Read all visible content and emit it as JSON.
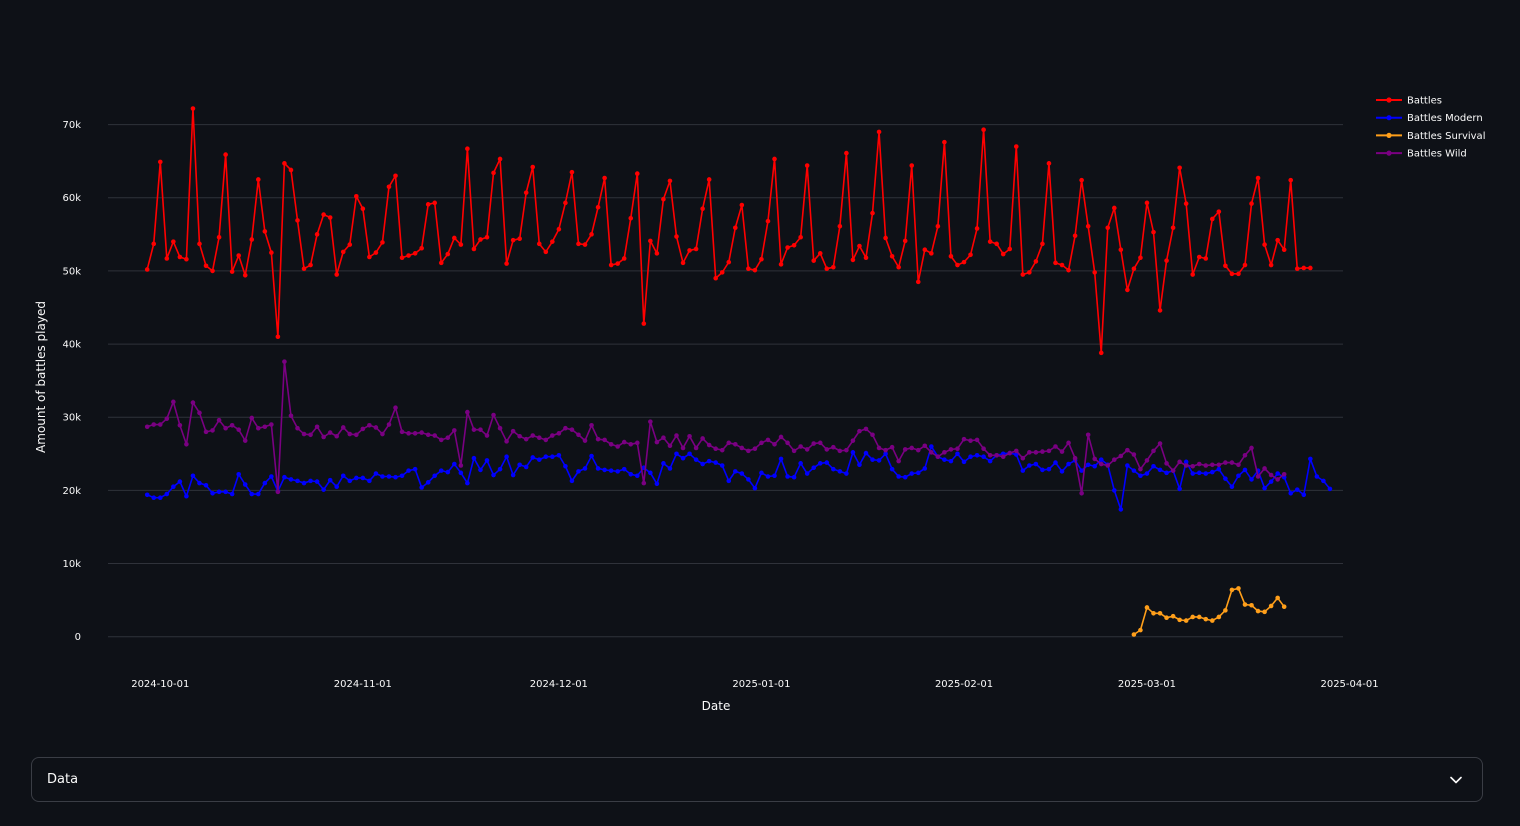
{
  "chart_data": {
    "type": "line",
    "xlabel": "Date",
    "ylabel": "Amount of battles played",
    "x_ticks": [
      "2024-10-01",
      "2024-11-01",
      "2024-12-01",
      "2025-01-01",
      "2025-02-01",
      "2025-03-01",
      "2025-04-01"
    ],
    "y_ticks": [
      {
        "value": 0,
        "label": "0"
      },
      {
        "value": 10000,
        "label": "10k"
      },
      {
        "value": 20000,
        "label": "20k"
      },
      {
        "value": 30000,
        "label": "30k"
      },
      {
        "value": 40000,
        "label": "40k"
      },
      {
        "value": 50000,
        "label": "50k"
      },
      {
        "value": 60000,
        "label": "60k"
      },
      {
        "value": 70000,
        "label": "70k"
      }
    ],
    "xlim": [
      "2024-09-23",
      "2025-03-31"
    ],
    "ylim": [
      -2500,
      75000
    ],
    "grid": true,
    "legend_position": "top-right",
    "series": [
      {
        "name": "Battles",
        "color": "#ff0000",
        "start": "2024-09-29",
        "values": [
          50200,
          53700,
          64900,
          51700,
          54000,
          51900,
          51600,
          72200,
          53700,
          50700,
          50000,
          54600,
          65900,
          49900,
          52100,
          49400,
          54300,
          62500,
          55400,
          52500,
          41000,
          64700,
          63800,
          56900,
          50300,
          50800,
          55000,
          57700,
          57300,
          49500,
          52600,
          53600,
          60200,
          58500,
          51900,
          52500,
          53900,
          61500,
          63000,
          51800,
          52100,
          52400,
          53100,
          59100,
          59300,
          51100,
          52300,
          54500,
          53600,
          66700,
          53000,
          54300,
          54600,
          63400,
          65300,
          51000,
          54200,
          54400,
          60700,
          64200,
          53700,
          52600,
          54000,
          55700,
          59300,
          63500,
          53700,
          53600,
          55000,
          58700,
          62700,
          50800,
          51000,
          51700,
          57200,
          63300,
          42800,
          54100,
          52400,
          59800,
          62300,
          54700,
          51100,
          52800,
          53000,
          58500,
          62500,
          49000,
          49800,
          51200,
          55900,
          59000,
          50300,
          50100,
          51600,
          56800,
          65300,
          50900,
          53200,
          53500,
          54600,
          64400,
          51400,
          52400,
          50300,
          50500,
          56100,
          66100,
          51500,
          53400,
          51800,
          57900,
          69000,
          54500,
          52000,
          50500,
          54100,
          64400,
          48500,
          52900,
          52400,
          56100,
          67600,
          52000,
          50800,
          51200,
          52200,
          55800,
          69300,
          54000,
          53700,
          52300,
          53000,
          67000,
          49500,
          49800,
          51300,
          53700,
          64700,
          51100,
          50800,
          50100,
          54800,
          62400,
          56100,
          49800,
          38800,
          55900,
          58600,
          52900,
          47400,
          50300,
          51800,
          59300,
          55300,
          44600,
          51400,
          55900,
          64100,
          59200,
          49500,
          51900,
          51700,
          57100,
          58100,
          50700,
          49600,
          49600,
          50800,
          59200,
          62700,
          53600,
          50800,
          54200,
          52900,
          62400,
          50300,
          50400,
          50400
        ]
      },
      {
        "name": "Battles Modern",
        "color": "#0000ff",
        "start": "2024-09-29",
        "values": [
          19400,
          19000,
          19000,
          19500,
          20500,
          21200,
          19200,
          22000,
          21000,
          20700,
          19600,
          19800,
          19800,
          19500,
          22200,
          20800,
          19500,
          19500,
          21000,
          21900,
          19900,
          21800,
          21500,
          21300,
          21000,
          21300,
          21200,
          20100,
          21400,
          20500,
          22000,
          21300,
          21700,
          21700,
          21300,
          22300,
          21900,
          21900,
          21800,
          22000,
          22700,
          22900,
          20400,
          21100,
          22000,
          22700,
          22500,
          23600,
          22400,
          21000,
          24400,
          22800,
          24100,
          22100,
          22900,
          24600,
          22100,
          23500,
          23200,
          24500,
          24200,
          24600,
          24600,
          24800,
          23300,
          21300,
          22600,
          23000,
          24700,
          23000,
          22800,
          22700,
          22600,
          22900,
          22200,
          22000,
          23100,
          22400,
          20900,
          23700,
          23000,
          25000,
          24400,
          25000,
          24200,
          23600,
          24000,
          23800,
          23400,
          21300,
          22600,
          22300,
          21500,
          20300,
          22400,
          21900,
          22000,
          24300,
          21900,
          21800,
          23700,
          22300,
          23100,
          23700,
          23800,
          22900,
          22600,
          22300,
          25200,
          23500,
          25100,
          24200,
          24100,
          25000,
          22900,
          21900,
          21800,
          22300,
          22400,
          23000,
          26000,
          24600,
          24200,
          24000,
          25000,
          23900,
          24600,
          24800,
          24600,
          24000,
          24800,
          25000,
          25100,
          24900,
          22700,
          23400,
          23600,
          22800,
          22900,
          23800,
          22600,
          23600,
          24100,
          22700,
          23500,
          23300,
          24200,
          23500,
          20000,
          17400,
          23400,
          22700,
          22000,
          22300,
          23300,
          22800,
          22400,
          22700,
          20200,
          23900,
          22300,
          22400,
          22300,
          22500,
          22900,
          21600,
          20500,
          22000,
          22800,
          21500,
          22700,
          20300,
          21200,
          22300,
          21800,
          19600,
          20100,
          19400,
          24300,
          21900,
          21300,
          20200
        ]
      },
      {
        "name": "Battles Survival",
        "color": "#ff9f1a",
        "start": "2025-02-27",
        "values": [
          300,
          900,
          4000,
          3200,
          3200,
          2600,
          2800,
          2300,
          2200,
          2700,
          2700,
          2400,
          2200,
          2700,
          3600,
          6400,
          6600,
          4400,
          4300,
          3500,
          3400,
          4200,
          5300,
          4100
        ]
      },
      {
        "name": "Battles Wild",
        "color": "#7a0082",
        "start": "2024-09-29",
        "values": [
          28700,
          29000,
          29000,
          29800,
          32100,
          28900,
          26300,
          32000,
          30600,
          28000,
          28200,
          29600,
          28500,
          28900,
          28300,
          26800,
          29900,
          28500,
          28700,
          29000,
          19800,
          37600,
          30200,
          28500,
          27700,
          27600,
          28700,
          27300,
          27900,
          27400,
          28600,
          27700,
          27600,
          28400,
          28900,
          28600,
          27700,
          29000,
          31300,
          28000,
          27800,
          27800,
          27900,
          27600,
          27500,
          26900,
          27200,
          28200,
          23400,
          30700,
          28300,
          28300,
          27500,
          30300,
          28500,
          26700,
          28100,
          27400,
          27000,
          27500,
          27200,
          26900,
          27500,
          27800,
          28500,
          28300,
          27600,
          26800,
          28900,
          27000,
          26900,
          26300,
          26000,
          26600,
          26300,
          26500,
          21000,
          29400,
          26600,
          27200,
          26100,
          27500,
          25800,
          27400,
          25800,
          27100,
          26200,
          25700,
          25500,
          26500,
          26300,
          25800,
          25400,
          25700,
          26500,
          26900,
          26300,
          27300,
          26500,
          25400,
          26000,
          25600,
          26400,
          26500,
          25600,
          25900,
          25400,
          25500,
          26800,
          28100,
          28400,
          27600,
          25800,
          25500,
          25900,
          24000,
          25600,
          25800,
          25500,
          26100,
          25200,
          24600,
          25200,
          25600,
          25700,
          27000,
          26800,
          26900,
          25700,
          24800,
          24800,
          24600,
          25100,
          25400,
          24400,
          25200,
          25200,
          25300,
          25400,
          26000,
          25300,
          26500,
          24400,
          19600,
          27600,
          24300,
          23600,
          23400,
          24200,
          24700,
          25500,
          24900,
          22900,
          24100,
          25400,
          26400,
          23700,
          22700,
          23900,
          23400,
          23300,
          23600,
          23400,
          23500,
          23500,
          23800,
          23800,
          23500,
          24800,
          25800,
          21900,
          23000,
          22100,
          21500,
          22200
        ]
      }
    ]
  },
  "expander": {
    "label": "Data",
    "icon": "chevron-down-icon"
  }
}
